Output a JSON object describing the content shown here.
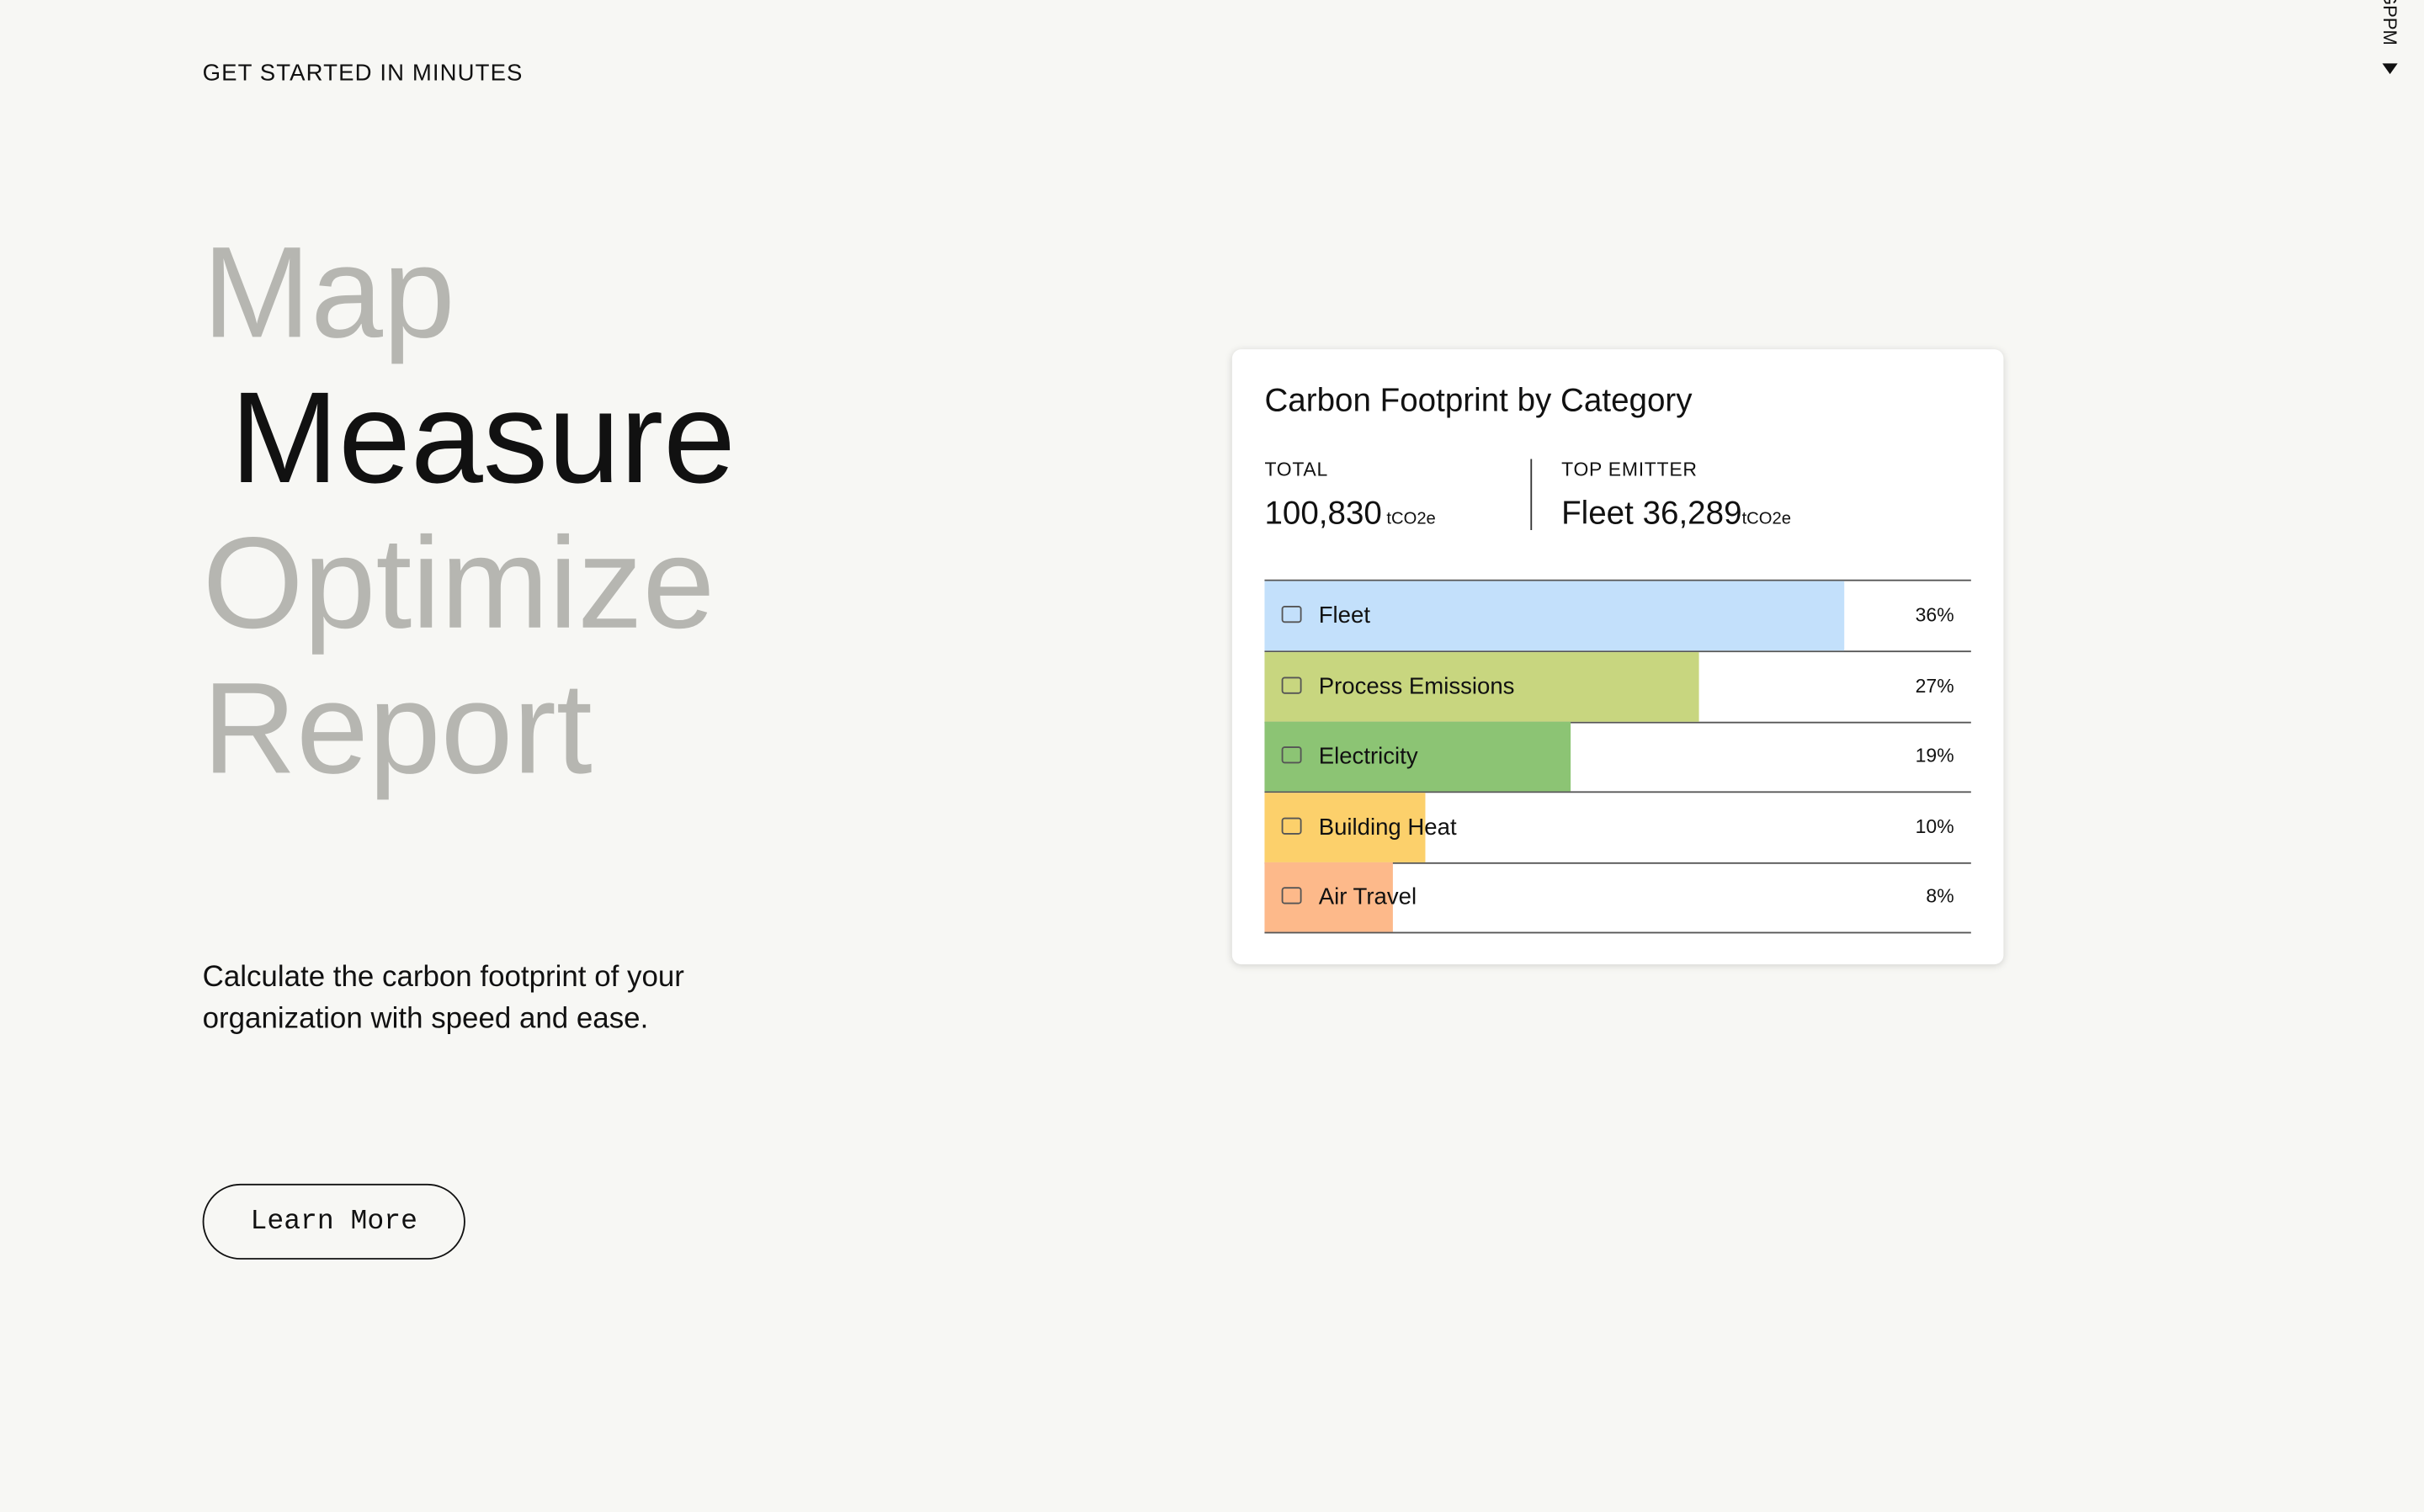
{
  "eyebrow": "GET STARTED IN MINUTES",
  "headline": [
    "Map",
    "Measure",
    "Optimize",
    "Report"
  ],
  "description": "Calculate the carbon footprint of your organization with speed and ease.",
  "button": "Learn More",
  "side_label": "GPPM",
  "chart_data": {
    "type": "bar",
    "title": "Carbon Footprint by Category",
    "total_label": "TOTAL",
    "total_value": "100,830",
    "total_unit": "tCO2e",
    "top_label": "TOP EMITTER",
    "top_value": "Fleet 36,289",
    "top_unit": "tCO2e",
    "categories": [
      "Fleet",
      "Process Emissions",
      "Electricity",
      "Building Heat",
      "Air Travel"
    ],
    "values": [
      36,
      27,
      19,
      10,
      8
    ],
    "value_labels": [
      "36%",
      "27%",
      "19%",
      "10%",
      "8%"
    ],
    "colors": [
      "#c3e0fb",
      "#c8d67f",
      "#8cc474",
      "#fcd06b",
      "#fdb98a"
    ]
  }
}
